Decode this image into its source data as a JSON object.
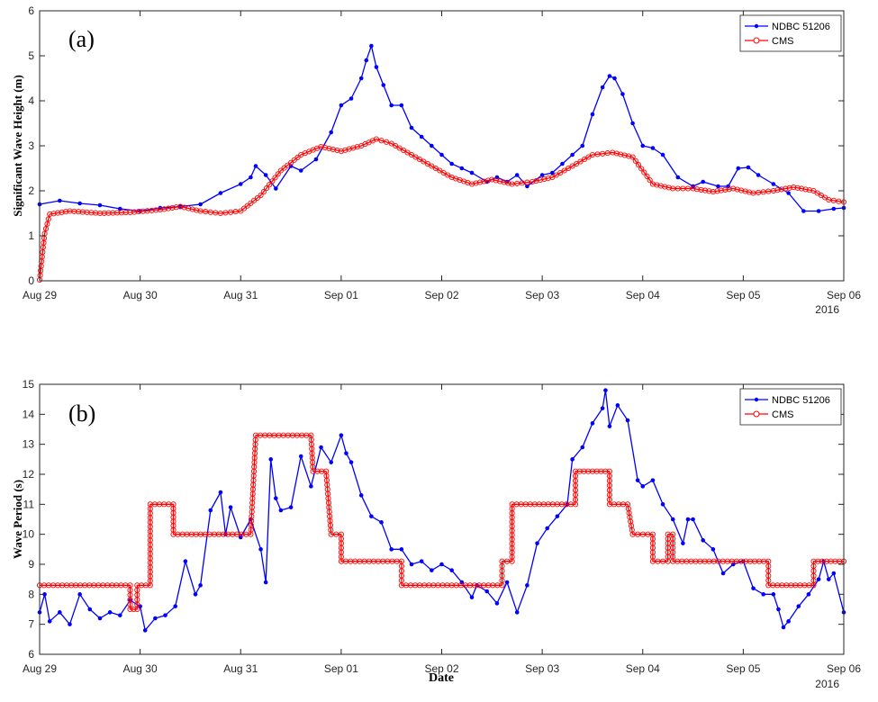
{
  "chart_data": [
    {
      "panel": "(a)",
      "type": "line",
      "ylabel": "Significant Wave Height (m)",
      "xlabel": "",
      "ylim": [
        0,
        6
      ],
      "yticks": [
        0,
        1,
        2,
        3,
        4,
        5,
        6
      ],
      "xlim": [
        0,
        8
      ],
      "xtick_labels": [
        "Aug 29",
        "Aug 30",
        "Aug 31",
        "Sep 01",
        "Sep 02",
        "Sep 03",
        "Sep 04",
        "Sep 05",
        "Sep 06"
      ],
      "year_label": "2016",
      "legend_position": "top-right",
      "grid": false,
      "series": [
        {
          "name": "NDBC 51206",
          "color": "#0000ff",
          "marker": "dot",
          "points": [
            [
              0,
              1.7
            ],
            [
              0.2,
              1.78
            ],
            [
              0.4,
              1.72
            ],
            [
              0.6,
              1.68
            ],
            [
              0.8,
              1.6
            ],
            [
              1.0,
              1.55
            ],
            [
              1.2,
              1.62
            ],
            [
              1.4,
              1.65
            ],
            [
              1.6,
              1.7
            ],
            [
              1.8,
              1.95
            ],
            [
              2.0,
              2.15
            ],
            [
              2.1,
              2.3
            ],
            [
              2.15,
              2.55
            ],
            [
              2.25,
              2.35
            ],
            [
              2.35,
              2.05
            ],
            [
              2.5,
              2.55
            ],
            [
              2.6,
              2.45
            ],
            [
              2.75,
              2.7
            ],
            [
              2.9,
              3.3
            ],
            [
              3.0,
              3.9
            ],
            [
              3.1,
              4.05
            ],
            [
              3.2,
              4.5
            ],
            [
              3.25,
              4.9
            ],
            [
              3.3,
              5.22
            ],
            [
              3.35,
              4.75
            ],
            [
              3.42,
              4.35
            ],
            [
              3.5,
              3.9
            ],
            [
              3.6,
              3.9
            ],
            [
              3.7,
              3.4
            ],
            [
              3.8,
              3.2
            ],
            [
              3.9,
              3.0
            ],
            [
              4.0,
              2.8
            ],
            [
              4.1,
              2.6
            ],
            [
              4.2,
              2.5
            ],
            [
              4.3,
              2.4
            ],
            [
              4.45,
              2.2
            ],
            [
              4.55,
              2.3
            ],
            [
              4.65,
              2.2
            ],
            [
              4.75,
              2.35
            ],
            [
              4.85,
              2.1
            ],
            [
              5.0,
              2.35
            ],
            [
              5.1,
              2.4
            ],
            [
              5.2,
              2.6
            ],
            [
              5.3,
              2.8
            ],
            [
              5.4,
              3.0
            ],
            [
              5.5,
              3.7
            ],
            [
              5.6,
              4.3
            ],
            [
              5.67,
              4.55
            ],
            [
              5.72,
              4.5
            ],
            [
              5.8,
              4.15
            ],
            [
              5.9,
              3.5
            ],
            [
              6.0,
              3.0
            ],
            [
              6.1,
              2.95
            ],
            [
              6.2,
              2.8
            ],
            [
              6.35,
              2.3
            ],
            [
              6.5,
              2.1
            ],
            [
              6.6,
              2.2
            ],
            [
              6.75,
              2.1
            ],
            [
              6.85,
              2.1
            ],
            [
              6.95,
              2.5
            ],
            [
              7.05,
              2.52
            ],
            [
              7.15,
              2.35
            ],
            [
              7.3,
              2.15
            ],
            [
              7.45,
              1.95
            ],
            [
              7.6,
              1.55
            ],
            [
              7.75,
              1.55
            ],
            [
              7.9,
              1.6
            ],
            [
              8.0,
              1.62
            ]
          ]
        },
        {
          "name": "CMS",
          "color": "#ff0000",
          "marker": "circle",
          "points": [
            [
              0,
              0.02
            ],
            [
              0.05,
              1.05
            ],
            [
              0.1,
              1.48
            ],
            [
              0.3,
              1.55
            ],
            [
              0.6,
              1.5
            ],
            [
              0.9,
              1.52
            ],
            [
              1.2,
              1.58
            ],
            [
              1.4,
              1.65
            ],
            [
              1.6,
              1.55
            ],
            [
              1.8,
              1.5
            ],
            [
              2.0,
              1.55
            ],
            [
              2.2,
              1.9
            ],
            [
              2.4,
              2.45
            ],
            [
              2.6,
              2.8
            ],
            [
              2.8,
              2.98
            ],
            [
              3.0,
              2.88
            ],
            [
              3.2,
              3.0
            ],
            [
              3.35,
              3.15
            ],
            [
              3.5,
              3.05
            ],
            [
              3.7,
              2.8
            ],
            [
              3.9,
              2.55
            ],
            [
              4.1,
              2.3
            ],
            [
              4.3,
              2.15
            ],
            [
              4.5,
              2.25
            ],
            [
              4.7,
              2.15
            ],
            [
              4.9,
              2.2
            ],
            [
              5.1,
              2.3
            ],
            [
              5.3,
              2.55
            ],
            [
              5.5,
              2.8
            ],
            [
              5.7,
              2.85
            ],
            [
              5.9,
              2.75
            ],
            [
              6.1,
              2.15
            ],
            [
              6.3,
              2.05
            ],
            [
              6.5,
              2.05
            ],
            [
              6.7,
              1.98
            ],
            [
              6.9,
              2.05
            ],
            [
              7.1,
              1.95
            ],
            [
              7.3,
              2.0
            ],
            [
              7.5,
              2.08
            ],
            [
              7.7,
              2.0
            ],
            [
              7.85,
              1.8
            ],
            [
              8.0,
              1.75
            ]
          ]
        }
      ]
    },
    {
      "panel": "(b)",
      "type": "line",
      "ylabel": "Wave Period (s)",
      "xlabel": "Date",
      "ylim": [
        6,
        15
      ],
      "yticks": [
        6,
        7,
        8,
        9,
        10,
        11,
        12,
        13,
        14,
        15
      ],
      "xlim": [
        0,
        8
      ],
      "xtick_labels": [
        "Aug 29",
        "Aug 30",
        "Aug 31",
        "Sep 01",
        "Sep 02",
        "Sep 03",
        "Sep 04",
        "Sep 05",
        "Sep 06"
      ],
      "year_label": "2016",
      "legend_position": "top-right",
      "grid": false,
      "series": [
        {
          "name": "NDBC 51206",
          "color": "#0000ff",
          "marker": "dot",
          "points": [
            [
              0,
              7.4
            ],
            [
              0.05,
              8.0
            ],
            [
              0.1,
              7.1
            ],
            [
              0.2,
              7.4
            ],
            [
              0.3,
              7.0
            ],
            [
              0.4,
              8.0
            ],
            [
              0.5,
              7.5
            ],
            [
              0.6,
              7.2
            ],
            [
              0.7,
              7.4
            ],
            [
              0.8,
              7.3
            ],
            [
              0.9,
              7.8
            ],
            [
              1.0,
              7.6
            ],
            [
              1.05,
              6.8
            ],
            [
              1.15,
              7.2
            ],
            [
              1.25,
              7.3
            ],
            [
              1.35,
              7.6
            ],
            [
              1.45,
              9.1
            ],
            [
              1.55,
              8.0
            ],
            [
              1.6,
              8.3
            ],
            [
              1.7,
              10.8
            ],
            [
              1.8,
              11.4
            ],
            [
              1.85,
              10.0
            ],
            [
              1.9,
              10.9
            ],
            [
              2.0,
              9.9
            ],
            [
              2.1,
              10.5
            ],
            [
              2.2,
              9.5
            ],
            [
              2.25,
              8.4
            ],
            [
              2.3,
              12.5
            ],
            [
              2.35,
              11.2
            ],
            [
              2.4,
              10.8
            ],
            [
              2.5,
              10.9
            ],
            [
              2.6,
              12.6
            ],
            [
              2.7,
              11.6
            ],
            [
              2.8,
              12.9
            ],
            [
              2.9,
              12.4
            ],
            [
              3.0,
              13.3
            ],
            [
              3.05,
              12.7
            ],
            [
              3.1,
              12.4
            ],
            [
              3.2,
              11.3
            ],
            [
              3.3,
              10.6
            ],
            [
              3.4,
              10.4
            ],
            [
              3.5,
              9.5
            ],
            [
              3.6,
              9.5
            ],
            [
              3.7,
              9.0
            ],
            [
              3.8,
              9.1
            ],
            [
              3.9,
              8.8
            ],
            [
              4.0,
              9.0
            ],
            [
              4.1,
              8.8
            ],
            [
              4.2,
              8.4
            ],
            [
              4.3,
              7.9
            ],
            [
              4.35,
              8.3
            ],
            [
              4.45,
              8.1
            ],
            [
              4.55,
              7.7
            ],
            [
              4.65,
              8.4
            ],
            [
              4.75,
              7.4
            ],
            [
              4.85,
              8.3
            ],
            [
              4.95,
              9.7
            ],
            [
              5.05,
              10.2
            ],
            [
              5.15,
              10.6
            ],
            [
              5.25,
              11.0
            ],
            [
              5.3,
              12.5
            ],
            [
              5.4,
              12.9
            ],
            [
              5.5,
              13.7
            ],
            [
              5.6,
              14.2
            ],
            [
              5.63,
              14.8
            ],
            [
              5.67,
              13.6
            ],
            [
              5.75,
              14.3
            ],
            [
              5.85,
              13.8
            ],
            [
              5.95,
              11.8
            ],
            [
              6.0,
              11.6
            ],
            [
              6.1,
              11.8
            ],
            [
              6.2,
              11.0
            ],
            [
              6.3,
              10.5
            ],
            [
              6.4,
              9.7
            ],
            [
              6.45,
              10.5
            ],
            [
              6.5,
              10.5
            ],
            [
              6.6,
              9.8
            ],
            [
              6.7,
              9.5
            ],
            [
              6.8,
              8.7
            ],
            [
              6.9,
              9.0
            ],
            [
              7.0,
              9.1
            ],
            [
              7.1,
              8.2
            ],
            [
              7.2,
              8.0
            ],
            [
              7.3,
              8.0
            ],
            [
              7.35,
              7.5
            ],
            [
              7.4,
              6.9
            ],
            [
              7.45,
              7.1
            ],
            [
              7.55,
              7.6
            ],
            [
              7.65,
              8.0
            ],
            [
              7.75,
              8.5
            ],
            [
              7.8,
              9.1
            ],
            [
              7.85,
              8.5
            ],
            [
              7.9,
              8.7
            ],
            [
              8.0,
              7.4
            ]
          ]
        },
        {
          "name": "CMS",
          "color": "#ff0000",
          "marker": "circle",
          "points": [
            [
              0,
              8.3
            ],
            [
              0.9,
              8.3
            ],
            [
              0.9,
              7.5
            ],
            [
              0.97,
              7.5
            ],
            [
              0.97,
              8.3
            ],
            [
              1.1,
              8.3
            ],
            [
              1.1,
              11.0
            ],
            [
              1.33,
              11.0
            ],
            [
              1.33,
              10.0
            ],
            [
              2.1,
              10.0
            ],
            [
              2.15,
              13.3
            ],
            [
              2.7,
              13.3
            ],
            [
              2.72,
              12.1
            ],
            [
              2.85,
              12.1
            ],
            [
              2.9,
              10.0
            ],
            [
              3.0,
              10.0
            ],
            [
              3.0,
              9.1
            ],
            [
              3.6,
              9.1
            ],
            [
              3.6,
              8.3
            ],
            [
              4.6,
              8.3
            ],
            [
              4.6,
              9.1
            ],
            [
              4.7,
              9.1
            ],
            [
              4.7,
              11.0
            ],
            [
              5.33,
              11.0
            ],
            [
              5.33,
              12.1
            ],
            [
              5.67,
              12.1
            ],
            [
              5.67,
              11.0
            ],
            [
              5.85,
              11.0
            ],
            [
              5.9,
              10.0
            ],
            [
              6.1,
              10.0
            ],
            [
              6.1,
              9.1
            ],
            [
              6.25,
              9.1
            ],
            [
              6.25,
              10.0
            ],
            [
              6.3,
              10.0
            ],
            [
              6.3,
              9.1
            ],
            [
              7.25,
              9.1
            ],
            [
              7.25,
              8.3
            ],
            [
              7.7,
              8.3
            ],
            [
              7.7,
              9.1
            ],
            [
              8.0,
              9.1
            ]
          ]
        }
      ]
    }
  ]
}
